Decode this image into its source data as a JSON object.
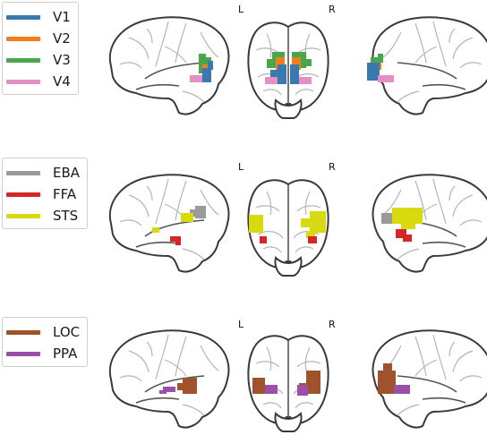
{
  "panels": [
    {
      "id": "early-visual",
      "legend": [
        {
          "label": "V1",
          "color": "#3a78b0"
        },
        {
          "label": "V2",
          "color": "#f07f1d"
        },
        {
          "label": "V3",
          "color": "#4aa64a"
        },
        {
          "label": "V4",
          "color": "#e68fc4"
        }
      ],
      "left_label": "L",
      "right_label": "R"
    },
    {
      "id": "body-face",
      "legend": [
        {
          "label": "EBA",
          "color": "#9a9a9a"
        },
        {
          "label": "FFA",
          "color": "#d62728"
        },
        {
          "label": "STS",
          "color": "#d9d90f"
        }
      ],
      "left_label": "L",
      "right_label": "R"
    },
    {
      "id": "object-place",
      "legend": [
        {
          "label": "LOC",
          "color": "#a0522d"
        },
        {
          "label": "PPA",
          "color": "#9b4fa8"
        }
      ],
      "left_label": "L",
      "right_label": "R"
    }
  ]
}
